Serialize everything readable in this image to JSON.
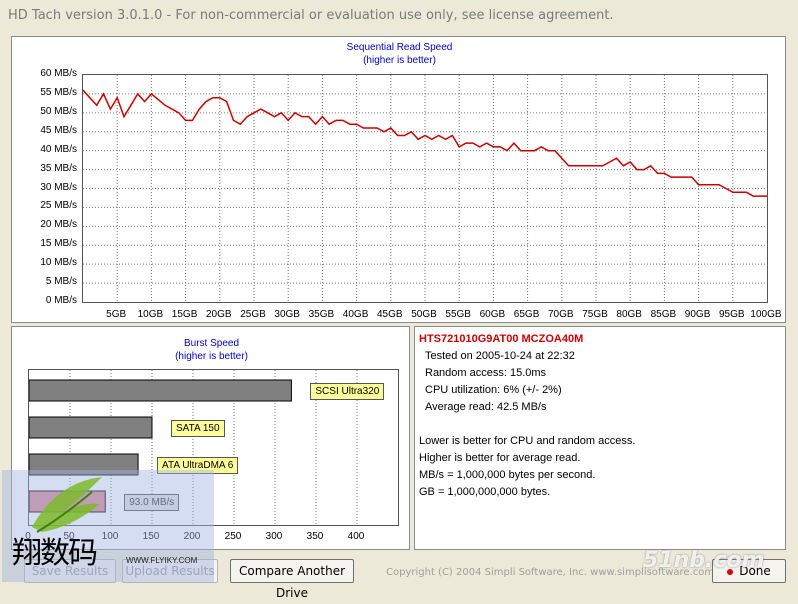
{
  "window": {
    "title": "HD Tach version 3.0.1.0  - For non-commercial or evaluation use only, see license agreement."
  },
  "seq_chart": {
    "title_line1": "Sequential Read Speed",
    "title_line2": "(higher is better)",
    "ytick_labels": [
      "60 MB/s",
      "55 MB/s",
      "50 MB/s",
      "45 MB/s",
      "40 MB/s",
      "35 MB/s",
      "30 MB/s",
      "25 MB/s",
      "20 MB/s",
      "15 MB/s",
      "10 MB/s",
      "5 MB/s",
      "0 MB/s"
    ],
    "xtick_labels": [
      "5GB",
      "10GB",
      "15GB",
      "20GB",
      "25GB",
      "30GB",
      "35GB",
      "40GB",
      "45GB",
      "50GB",
      "55GB",
      "60GB",
      "65GB",
      "70GB",
      "75GB",
      "80GB",
      "85GB",
      "90GB",
      "95GB",
      "100GB"
    ],
    "line_color": "#cc0000"
  },
  "burst_chart": {
    "title_line1": "Burst Speed",
    "title_line2": "(higher is better)",
    "xtick_labels": [
      "0",
      "50",
      "100",
      "150",
      "200",
      "250",
      "300",
      "350",
      "400"
    ],
    "bar_color": "#808080",
    "highlight_color": "#d98a9a"
  },
  "chart_data": [
    {
      "type": "line",
      "title": "Sequential Read Speed",
      "subtitle": "(higher is better)",
      "xlabel": "",
      "ylabel": "",
      "xlim": [
        0,
        100
      ],
      "ylim": [
        0,
        60
      ],
      "grid": true,
      "series": [
        {
          "x": [
            0,
            1,
            2,
            3,
            4,
            5,
            6,
            7,
            8,
            9,
            10,
            12,
            14,
            15,
            16,
            17,
            18,
            19,
            20,
            21,
            22,
            23,
            24,
            25,
            26,
            27,
            28,
            29,
            30,
            31,
            32,
            33,
            34,
            35,
            36,
            37,
            38,
            39,
            40,
            41,
            42,
            43,
            44,
            45,
            46,
            47,
            48,
            49,
            50,
            51,
            52,
            53,
            54,
            55,
            56,
            57,
            58,
            59,
            60,
            61,
            62,
            63,
            64,
            65,
            66,
            67,
            68,
            69,
            70,
            71,
            72,
            73,
            74,
            75,
            76,
            77,
            78,
            79,
            80,
            81,
            82,
            83,
            84,
            85,
            86,
            87,
            88,
            89,
            90,
            91,
            92,
            93,
            94,
            95,
            96,
            97,
            98,
            99,
            100
          ],
          "y": [
            56,
            54,
            52,
            55,
            51,
            54,
            49,
            52,
            55,
            53,
            55,
            52,
            50,
            48,
            48,
            51,
            53,
            54,
            54,
            53,
            48,
            47,
            49,
            50,
            51,
            50,
            49,
            50,
            48,
            50,
            49,
            49,
            47,
            49,
            47,
            48,
            48,
            47,
            47,
            46,
            46,
            46,
            45,
            46,
            44,
            44,
            45,
            43,
            44,
            43,
            44,
            43,
            44,
            41,
            42,
            42,
            41,
            42,
            41,
            41,
            40,
            42,
            40,
            40,
            40,
            41,
            40,
            40,
            38,
            36,
            36,
            36,
            36,
            36,
            36,
            37,
            38,
            36,
            37,
            35,
            35,
            36,
            34,
            34,
            33,
            33,
            33,
            33,
            31,
            31,
            31,
            31,
            30,
            29,
            29,
            29,
            28,
            28,
            28
          ]
        }
      ]
    },
    {
      "type": "bar",
      "title": "Burst Speed",
      "subtitle": "(higher is better)",
      "xlim": [
        0,
        450
      ],
      "categories": [
        "SCSI Ultra320",
        "SATA 150",
        "ATA UltraDMA 6",
        "93.0 MB/s"
      ],
      "values": [
        320,
        150,
        133,
        93
      ]
    }
  ],
  "info": {
    "drive_name": "HTS721010G9AT00 MCZOA40M",
    "tested_on": "Tested on 2005-10-24 at 22:32",
    "random_access": "Random access: 15.0ms",
    "cpu_util": "CPU utilization: 6% (+/- 2%)",
    "avg_read": "Average read: 42.5 MB/s",
    "note1": "Lower is better for CPU and random access.",
    "note2": "Higher is better for average read.",
    "note3": "MB/s = 1,000,000 bytes per second.",
    "note4": "GB = 1,000,000,000 bytes.",
    "drive_color": "#cc0000"
  },
  "buttons": {
    "save_label": "Save Results",
    "upload_label": "Upload Results",
    "compare_label": "Compare Another Drive",
    "done_label": "Done"
  },
  "footer": {
    "copyright": "Copyright (C) 2004 Simpli Software, Inc. www.simplisoftware.com"
  },
  "watermarks": {
    "left_text": "翔数码",
    "left_url": "WWW.FLYIKY.COM",
    "right_text": "51nb.com"
  }
}
